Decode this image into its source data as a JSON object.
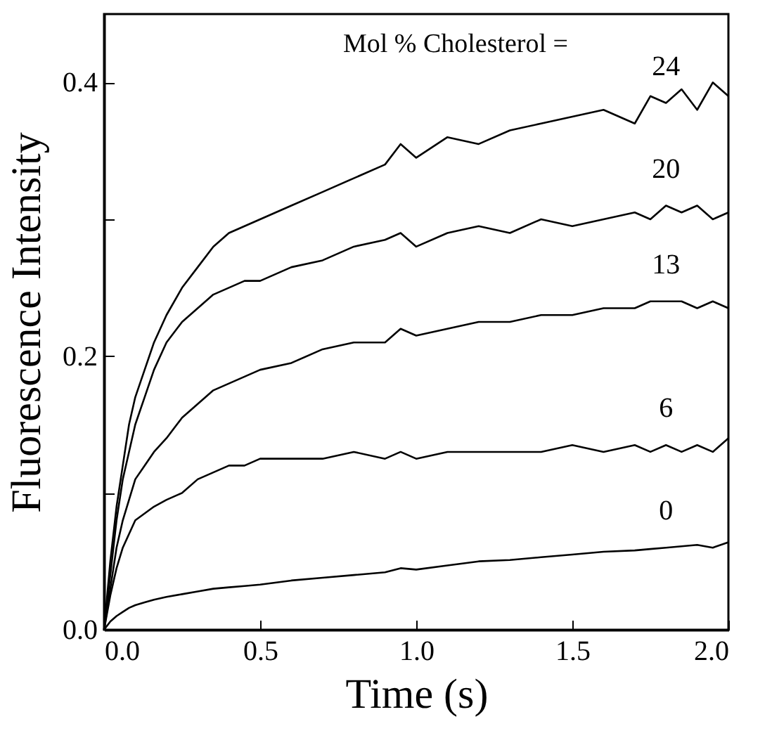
{
  "chart_data": {
    "type": "line",
    "xlabel": "Time (s)",
    "ylabel": "Fluorescence Intensity",
    "annotations": [
      "Mol % Cholesterol ="
    ],
    "x": [
      0,
      0.02,
      0.04,
      0.06,
      0.08,
      0.1,
      0.13,
      0.16,
      0.2,
      0.25,
      0.3,
      0.35,
      0.4,
      0.45,
      0.5,
      0.6,
      0.7,
      0.8,
      0.9,
      0.95,
      1.0,
      1.1,
      1.2,
      1.3,
      1.4,
      1.5,
      1.6,
      1.7,
      1.75,
      1.8,
      1.85,
      1.9,
      1.95,
      2.0
    ],
    "series": [
      {
        "name": "24",
        "color": "#000000",
        "values": [
          0,
          0.05,
          0.09,
          0.12,
          0.15,
          0.17,
          0.19,
          0.21,
          0.23,
          0.25,
          0.265,
          0.28,
          0.29,
          0.295,
          0.3,
          0.31,
          0.32,
          0.33,
          0.34,
          0.355,
          0.345,
          0.36,
          0.355,
          0.365,
          0.37,
          0.375,
          0.38,
          0.37,
          0.39,
          0.385,
          0.395,
          0.38,
          0.4,
          0.39
        ]
      },
      {
        "name": "20",
        "color": "#000000",
        "values": [
          0,
          0.04,
          0.08,
          0.11,
          0.13,
          0.15,
          0.17,
          0.19,
          0.21,
          0.225,
          0.235,
          0.245,
          0.25,
          0.255,
          0.255,
          0.265,
          0.27,
          0.28,
          0.285,
          0.29,
          0.28,
          0.29,
          0.295,
          0.29,
          0.3,
          0.295,
          0.3,
          0.305,
          0.3,
          0.31,
          0.305,
          0.31,
          0.3,
          0.305
        ]
      },
      {
        "name": "13",
        "color": "#000000",
        "values": [
          0,
          0.03,
          0.06,
          0.08,
          0.095,
          0.11,
          0.12,
          0.13,
          0.14,
          0.155,
          0.165,
          0.175,
          0.18,
          0.185,
          0.19,
          0.195,
          0.205,
          0.21,
          0.21,
          0.22,
          0.215,
          0.22,
          0.225,
          0.225,
          0.23,
          0.23,
          0.235,
          0.235,
          0.24,
          0.24,
          0.24,
          0.235,
          0.24,
          0.235
        ]
      },
      {
        "name": "6",
        "color": "#000000",
        "values": [
          0,
          0.025,
          0.045,
          0.06,
          0.07,
          0.08,
          0.085,
          0.09,
          0.095,
          0.1,
          0.11,
          0.115,
          0.12,
          0.12,
          0.125,
          0.125,
          0.125,
          0.13,
          0.125,
          0.13,
          0.125,
          0.13,
          0.13,
          0.13,
          0.13,
          0.135,
          0.13,
          0.135,
          0.13,
          0.135,
          0.13,
          0.135,
          0.13,
          0.14
        ]
      },
      {
        "name": "0",
        "color": "#000000",
        "values": [
          0,
          0.006,
          0.01,
          0.013,
          0.016,
          0.018,
          0.02,
          0.022,
          0.024,
          0.026,
          0.028,
          0.03,
          0.031,
          0.032,
          0.033,
          0.036,
          0.038,
          0.04,
          0.042,
          0.045,
          0.044,
          0.047,
          0.05,
          0.051,
          0.053,
          0.055,
          0.057,
          0.058,
          0.059,
          0.06,
          0.061,
          0.062,
          0.06,
          0.064
        ]
      }
    ],
    "xlim": [
      0,
      2.0
    ],
    "xticks": [
      {
        "value": 0,
        "label": "0.0"
      },
      0.5,
      {
        "value": 1,
        "label": "1.0"
      },
      1.5,
      {
        "value": 2,
        "label": "2.0"
      }
    ],
    "ylim": [
      0,
      0.45
    ],
    "yticks": [
      {
        "value": 0,
        "label": "0.0"
      },
      {
        "value": 0.1,
        "label": null
      },
      0.2,
      {
        "value": 0.3,
        "label": null
      },
      0.4
    ],
    "grid": false,
    "legend": false,
    "marker": "none",
    "line_style": "solid"
  }
}
